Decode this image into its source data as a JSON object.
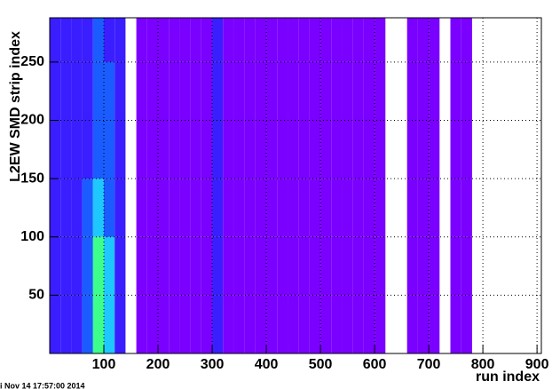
{
  "chart_data": {
    "type": "heatmap",
    "x_label": "run index",
    "y_label": "L2EW SMD strip index",
    "footer": "i Nov 14 17:57:00 2014",
    "xlim": [
      0,
      908
    ],
    "ylim": [
      0,
      288
    ],
    "xticks": [
      100,
      200,
      300,
      400,
      500,
      600,
      700,
      800,
      900
    ],
    "yticks": [
      50,
      100,
      150,
      200,
      250
    ],
    "grid": true,
    "x_bins": [
      0,
      20,
      40,
      60,
      80,
      100,
      120,
      140,
      160,
      180,
      200,
      220,
      240,
      260,
      280,
      300,
      320,
      340,
      360,
      380,
      400,
      420,
      440,
      460,
      480,
      500,
      520,
      540,
      560,
      580,
      600,
      620,
      640,
      660,
      680,
      700,
      720,
      740,
      760,
      780,
      800,
      820,
      840,
      860,
      880,
      900
    ],
    "y_bins": [
      0,
      50,
      100,
      150,
      200,
      250,
      288
    ],
    "palette": [
      "#7a00ff",
      "#3a1eff",
      "#1a5cff",
      "#1ec8ff",
      "#3cff8c",
      "#ffe000"
    ],
    "z": [
      [
        2,
        2,
        2,
        3,
        5,
        4,
        2,
        null,
        1,
        1,
        1,
        1,
        1,
        1,
        1,
        2,
        1,
        1,
        1,
        1,
        1,
        1,
        1,
        1,
        1,
        1,
        1,
        1,
        1,
        1,
        1,
        null,
        null,
        1,
        1,
        1,
        null,
        1,
        1,
        null,
        null,
        null,
        null,
        null,
        null
      ],
      [
        2,
        2,
        2,
        3,
        5,
        4,
        2,
        null,
        1,
        1,
        1,
        1,
        1,
        1,
        1,
        2,
        1,
        1,
        1,
        1,
        1,
        1,
        1,
        1,
        1,
        1,
        1,
        1,
        1,
        1,
        1,
        null,
        null,
        1,
        1,
        1,
        null,
        1,
        1,
        null,
        null,
        null,
        null,
        null,
        null
      ],
      [
        2,
        2,
        2,
        3,
        4,
        3,
        2,
        null,
        1,
        1,
        1,
        1,
        1,
        1,
        1,
        2,
        1,
        1,
        1,
        1,
        1,
        1,
        1,
        1,
        1,
        1,
        1,
        1,
        1,
        1,
        1,
        null,
        null,
        1,
        1,
        1,
        null,
        1,
        1,
        null,
        null,
        null,
        null,
        null,
        null
      ],
      [
        2,
        2,
        2,
        2,
        3,
        3,
        2,
        null,
        1,
        1,
        1,
        1,
        1,
        1,
        1,
        2,
        1,
        1,
        1,
        1,
        1,
        1,
        1,
        1,
        1,
        1,
        1,
        1,
        1,
        1,
        1,
        null,
        null,
        1,
        1,
        1,
        null,
        1,
        1,
        null,
        null,
        null,
        null,
        null,
        null
      ],
      [
        2,
        2,
        2,
        2,
        3,
        3,
        2,
        null,
        1,
        1,
        1,
        1,
        1,
        1,
        1,
        2,
        1,
        1,
        1,
        1,
        1,
        1,
        1,
        1,
        1,
        1,
        1,
        1,
        1,
        1,
        1,
        null,
        null,
        1,
        1,
        1,
        null,
        1,
        1,
        null,
        null,
        null,
        null,
        null,
        null
      ],
      [
        2,
        2,
        2,
        2,
        3,
        2,
        2,
        null,
        1,
        1,
        1,
        1,
        1,
        1,
        1,
        2,
        1,
        1,
        1,
        1,
        1,
        1,
        1,
        1,
        1,
        1,
        1,
        1,
        1,
        1,
        1,
        null,
        null,
        1,
        1,
        1,
        null,
        1,
        1,
        null,
        null,
        null,
        null,
        null,
        null
      ]
    ]
  }
}
